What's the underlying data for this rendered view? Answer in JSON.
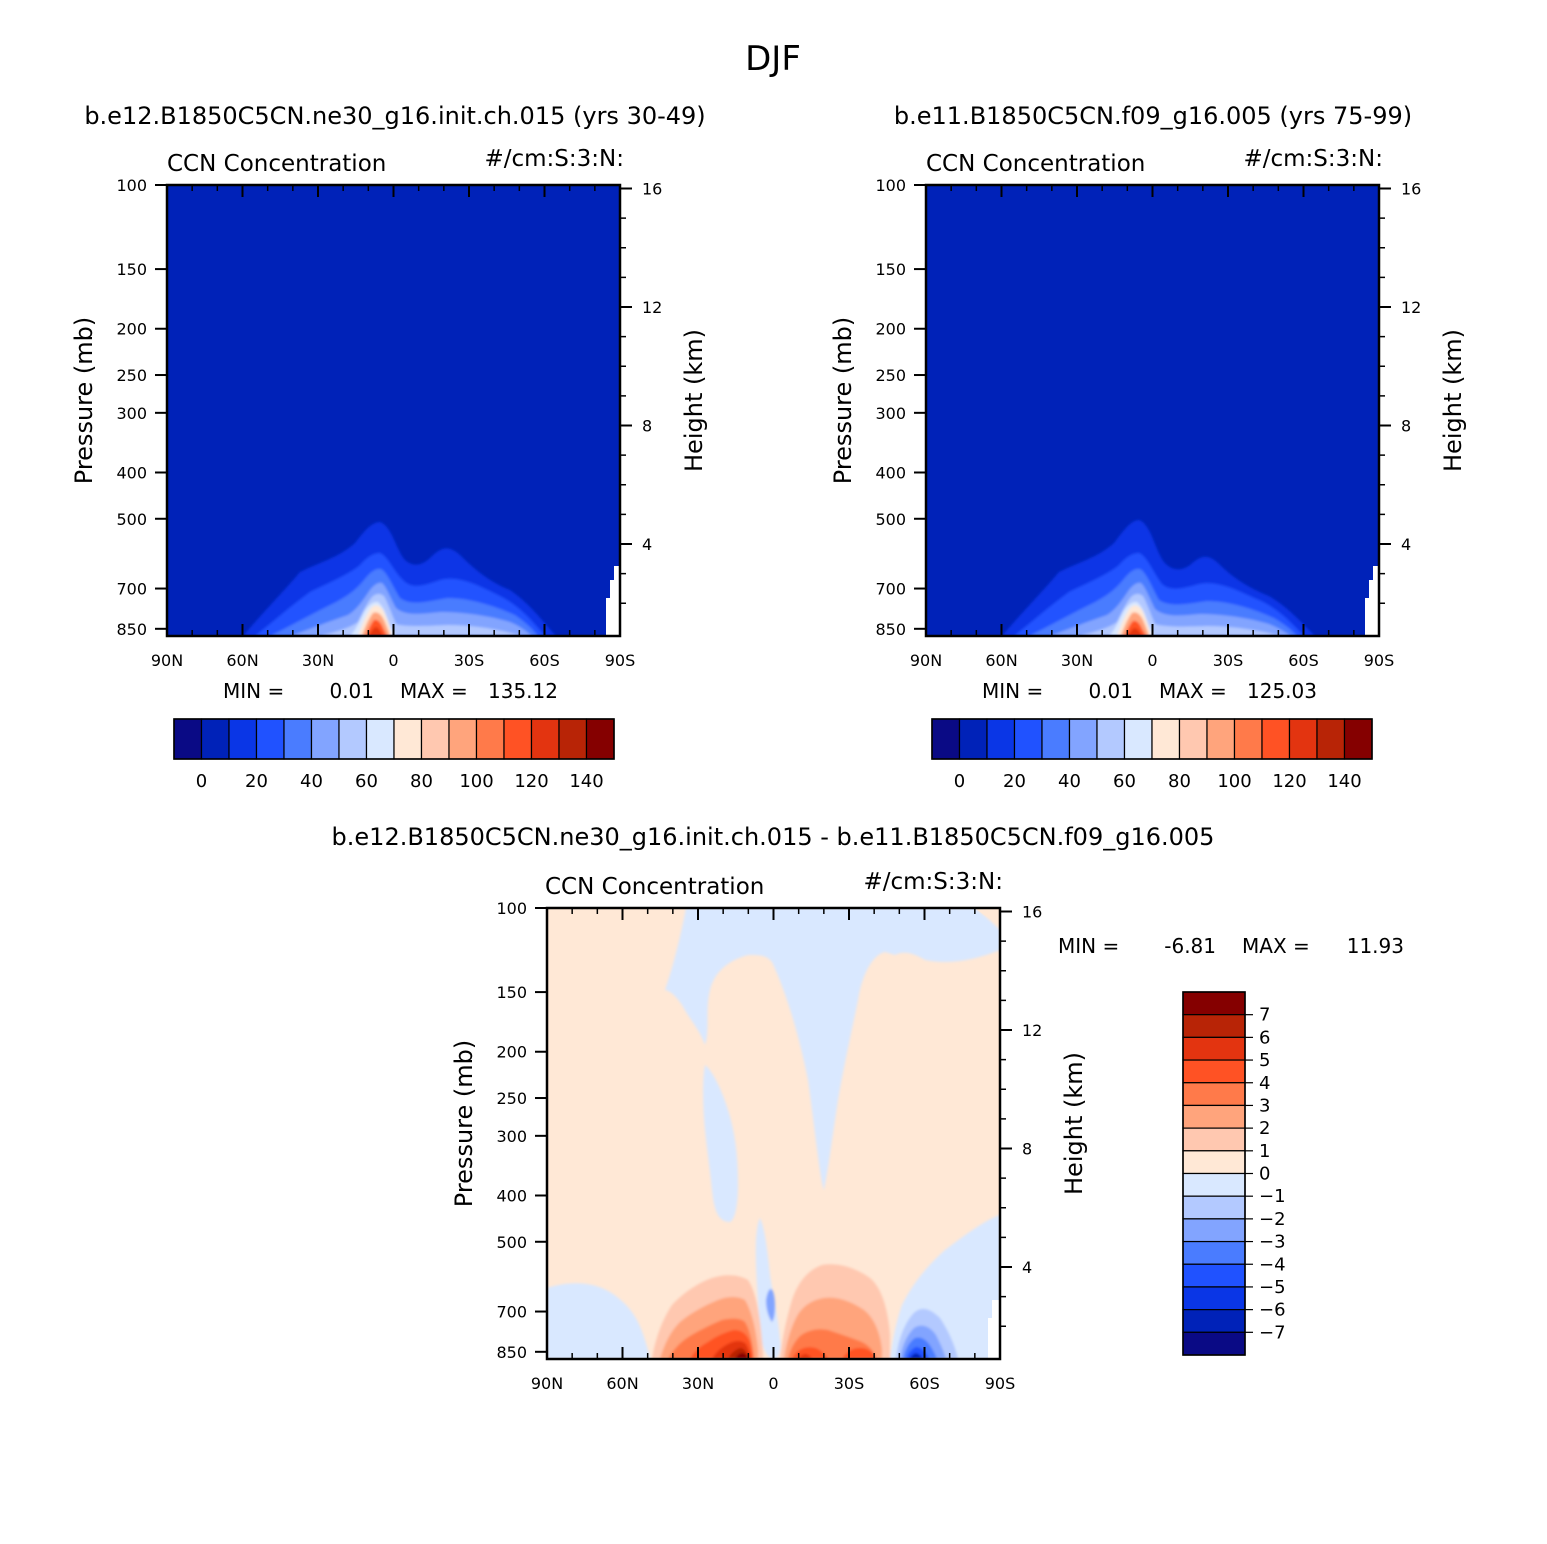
{
  "figure": {
    "title": "DJF",
    "colors": {
      "seq_cmap": [
        "#0a0a85",
        "#0022b8",
        "#0a36e6",
        "#2052ff",
        "#4a7cff",
        "#82a4ff",
        "#b3c9ff",
        "#d9e8ff",
        "#ffe8d6",
        "#ffc8b0",
        "#ffa47c",
        "#ff7a4a",
        "#ff5224",
        "#e33410",
        "#b82406",
        "#850000"
      ],
      "div_cmap": [
        "#0a0a85",
        "#0022b8",
        "#0a36e6",
        "#2052ff",
        "#4a7cff",
        "#82a4ff",
        "#b3c9ff",
        "#d9e8ff",
        "#ffe8d6",
        "#ffc8b0",
        "#ffa47c",
        "#ff7a4a",
        "#ff5224",
        "#e33410",
        "#b82406",
        "#850000"
      ]
    }
  },
  "chart_data": [
    {
      "type": "contour",
      "title": "b.e12.B1850C5CN.ne30_g16.init.ch.015 (yrs 30-49)",
      "left_string": "CCN Concentration",
      "right_string": "#/cm:S:3:N:",
      "ylabel": "Pressure (mb)",
      "ylabel_right": "Height (km)",
      "x_ticks": [
        "90N",
        "60N",
        "30N",
        "0",
        "30S",
        "60S",
        "90S"
      ],
      "y_ticks": [
        "100",
        "150",
        "200",
        "250",
        "300",
        "400",
        "500",
        "700",
        "850"
      ],
      "y_ticks_right": [
        "16",
        "12",
        "8",
        "4"
      ],
      "xlim": [
        90,
        -90
      ],
      "ylim": [
        880,
        100
      ],
      "y_scale": "log",
      "min_label": "MIN =",
      "min_value": "0.01",
      "max_label": "MAX =",
      "max_value": "135.12",
      "colorbar_orientation": "horizontal",
      "colorbar_labels": [
        "0",
        "20",
        "40",
        "60",
        "80",
        "100",
        "120",
        "140"
      ]
    },
    {
      "type": "contour",
      "title": "b.e11.B1850C5CN.f09_g16.005 (yrs 75-99)",
      "left_string": "CCN Concentration",
      "right_string": "#/cm:S:3:N:",
      "ylabel": "Pressure (mb)",
      "ylabel_right": "Height (km)",
      "x_ticks": [
        "90N",
        "60N",
        "30N",
        "0",
        "30S",
        "60S",
        "90S"
      ],
      "y_ticks": [
        "100",
        "150",
        "200",
        "250",
        "300",
        "400",
        "500",
        "700",
        "850"
      ],
      "y_ticks_right": [
        "16",
        "12",
        "8",
        "4"
      ],
      "xlim": [
        90,
        -90
      ],
      "ylim": [
        880,
        100
      ],
      "y_scale": "log",
      "min_label": "MIN =",
      "min_value": "0.01",
      "max_label": "MAX =",
      "max_value": "125.03",
      "colorbar_orientation": "horizontal",
      "colorbar_labels": [
        "0",
        "20",
        "40",
        "60",
        "80",
        "100",
        "120",
        "140"
      ]
    },
    {
      "type": "contour",
      "title": "b.e12.B1850C5CN.ne30_g16.init.ch.015 - b.e11.B1850C5CN.f09_g16.005",
      "left_string": "CCN Concentration",
      "right_string": "#/cm:S:3:N:",
      "ylabel": "Pressure (mb)",
      "ylabel_right": "Height (km)",
      "x_ticks": [
        "90N",
        "60N",
        "30N",
        "0",
        "30S",
        "60S",
        "90S"
      ],
      "y_ticks": [
        "100",
        "150",
        "200",
        "250",
        "300",
        "400",
        "500",
        "700",
        "850"
      ],
      "y_ticks_right": [
        "16",
        "12",
        "8",
        "4"
      ],
      "xlim": [
        90,
        -90
      ],
      "ylim": [
        880,
        100
      ],
      "y_scale": "log",
      "min_label": "MIN =",
      "min_value": "-6.81",
      "max_label": "MAX =",
      "max_value": "11.93",
      "colorbar_orientation": "vertical",
      "colorbar_labels": [
        "7",
        "6",
        "5",
        "4",
        "3",
        "2",
        "1",
        "0",
        "-1",
        "-2",
        "-3",
        "-4",
        "-5",
        "-6",
        "-7"
      ]
    }
  ]
}
